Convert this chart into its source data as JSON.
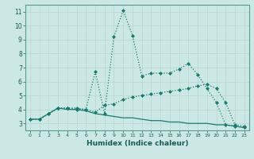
{
  "title": "",
  "xlabel": "Humidex (Indice chaleur)",
  "ylabel": "",
  "x_values": [
    0,
    1,
    2,
    3,
    4,
    5,
    6,
    7,
    8,
    9,
    10,
    11,
    12,
    13,
    14,
    15,
    16,
    17,
    18,
    19,
    20,
    21,
    22,
    23
  ],
  "line1": [
    3.3,
    3.3,
    3.7,
    4.1,
    4.1,
    4.1,
    4.0,
    6.7,
    3.7,
    9.2,
    11.1,
    9.3,
    6.4,
    6.6,
    6.6,
    6.6,
    6.9,
    7.3,
    6.5,
    5.5,
    4.5,
    2.9,
    2.8,
    2.7
  ],
  "line2": [
    3.3,
    3.3,
    3.7,
    4.1,
    4.1,
    4.0,
    4.0,
    3.8,
    4.3,
    4.4,
    4.7,
    4.9,
    5.0,
    5.1,
    5.2,
    5.3,
    5.4,
    5.5,
    5.7,
    5.8,
    5.5,
    4.5,
    2.9,
    2.8
  ],
  "line3": [
    3.3,
    3.3,
    3.7,
    4.1,
    4.0,
    4.0,
    3.9,
    3.7,
    3.6,
    3.5,
    3.4,
    3.4,
    3.3,
    3.2,
    3.2,
    3.1,
    3.1,
    3.0,
    3.0,
    3.0,
    2.9,
    2.9,
    2.8,
    2.7
  ],
  "line_color": "#1a7a6e",
  "bg_color": "#cce8e4",
  "grid_color": "#b8d4d0",
  "xlim": [
    -0.5,
    23.5
  ],
  "ylim": [
    2.5,
    11.5
  ],
  "yticks": [
    3,
    4,
    5,
    6,
    7,
    8,
    9,
    10,
    11
  ],
  "xticks": [
    0,
    1,
    2,
    3,
    4,
    5,
    6,
    7,
    8,
    9,
    10,
    11,
    12,
    13,
    14,
    15,
    16,
    17,
    18,
    19,
    20,
    21,
    22,
    23
  ],
  "marker": "D",
  "markersize": 2.0,
  "linewidth": 0.9
}
